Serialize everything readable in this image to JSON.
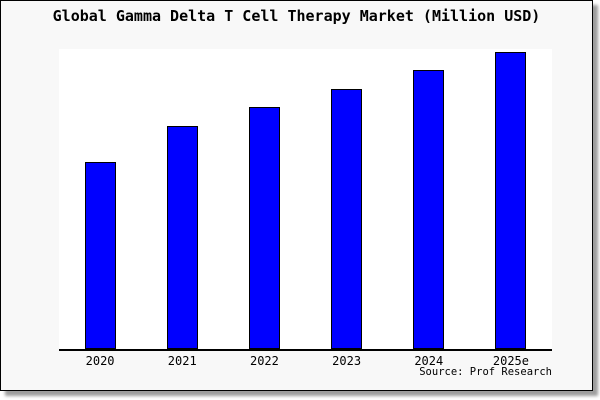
{
  "title": "Global Gamma Delta T Cell Therapy Market (Million USD)",
  "source_label": "Source: Prof Research",
  "colors": {
    "frame_background": "#F8F8F8",
    "plot_background": "#FFFFFF",
    "bar_fill": "#0000FF",
    "bar_outline": "#000000",
    "axis_line": "#000000",
    "frame_border": "#000000",
    "drop_shadow": "#9E9E9E",
    "text": "#000000"
  },
  "chart_data": {
    "type": "bar",
    "title": "Global Gamma Delta T Cell Therapy Market (Million USD)",
    "categories": [
      "2020",
      "2021",
      "2022",
      "2023",
      "2024",
      "2025e"
    ],
    "values": [
      63,
      75,
      82,
      88,
      94,
      100
    ],
    "values_unit": "relative index, 2025e = 100 (no numeric y-axis shown in chart)",
    "bar_height_pct_of_plot": [
      62.3,
      74.5,
      80.8,
      86.8,
      92.9,
      99.0
    ],
    "xlabel": "",
    "ylabel": "",
    "legend": "none",
    "gridlines": false,
    "y_axis_visible": false,
    "source": "Source: Prof Research"
  }
}
